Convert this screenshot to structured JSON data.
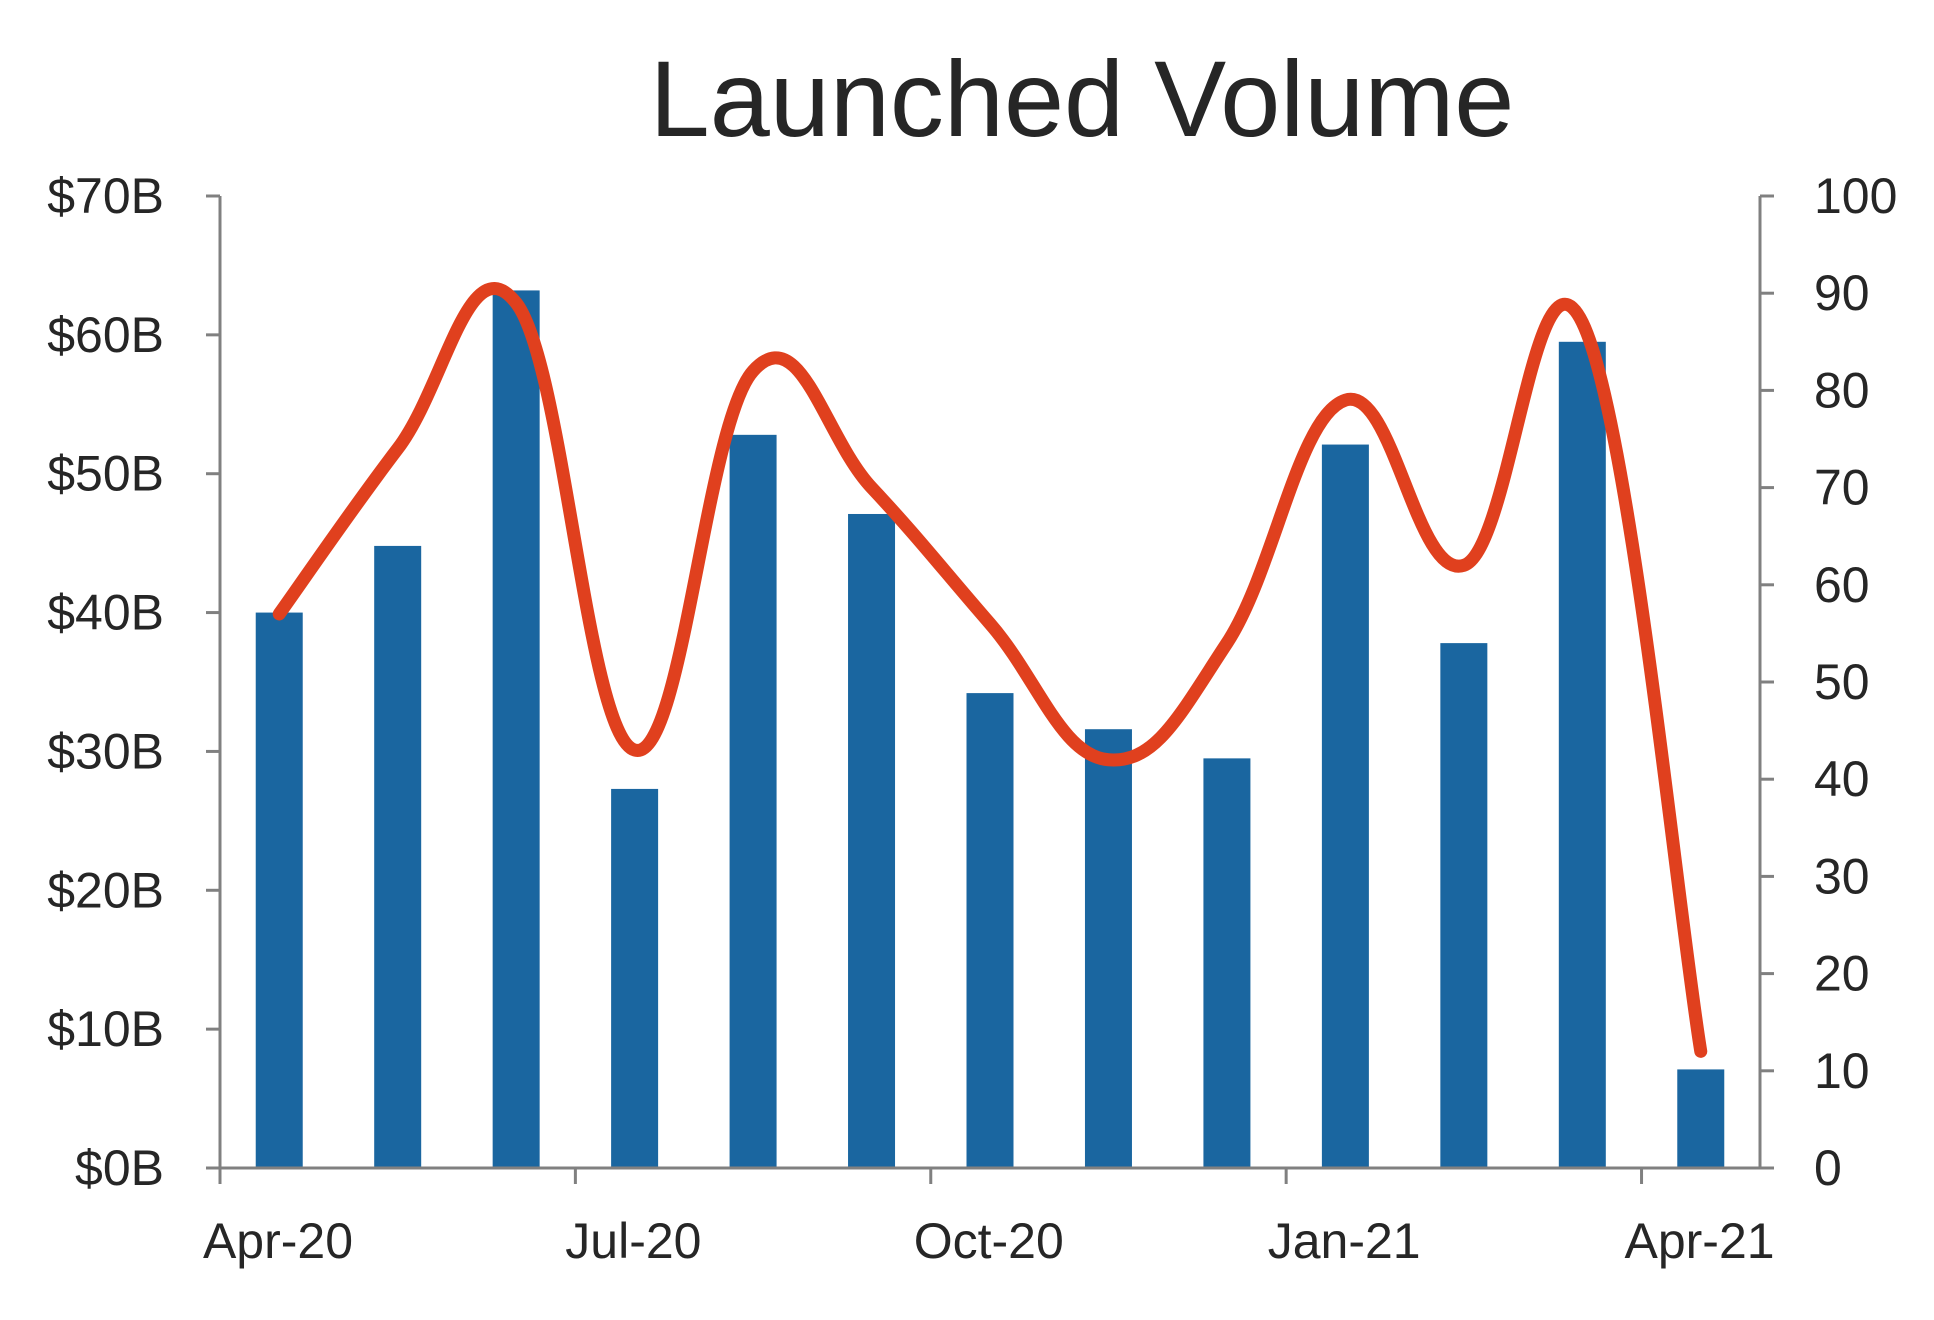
{
  "chart_data": {
    "type": "bar",
    "title": "Launched Volume",
    "x_tick_labels": [
      "Apr-20",
      "Jul-20",
      "Oct-20",
      "Jan-21",
      "Apr-21"
    ],
    "categories": [
      "Apr-20",
      "May-20",
      "Jun-20",
      "Jul-20",
      "Aug-20",
      "Sep-20",
      "Oct-20",
      "Nov-20",
      "Dec-20",
      "Jan-21",
      "Feb-21",
      "Mar-21",
      "Apr-21"
    ],
    "y_left": {
      "ylim": [
        0,
        70
      ],
      "ticks": [
        0,
        10,
        20,
        30,
        40,
        50,
        60,
        70
      ],
      "tick_labels": [
        "$0B",
        "$10B",
        "$20B",
        "$30B",
        "$40B",
        "$50B",
        "$60B",
        "$70B"
      ]
    },
    "y_right": {
      "ylim": [
        0,
        100
      ],
      "ticks": [
        0,
        10,
        20,
        30,
        40,
        50,
        60,
        70,
        80,
        90,
        100
      ],
      "tick_labels": [
        "0",
        "10",
        "20",
        "30",
        "40",
        "50",
        "60",
        "70",
        "80",
        "90",
        "100"
      ]
    },
    "series": [
      {
        "type": "bar",
        "axis": "left",
        "color": "#1a66a0",
        "values": [
          40,
          44.8,
          63.2,
          27.3,
          52.8,
          47.1,
          34.2,
          31.6,
          29.5,
          52.1,
          37.8,
          59.5,
          7.1
        ]
      },
      {
        "type": "line",
        "axis": "right",
        "smooth": true,
        "color": "#e0401e",
        "values": [
          57,
          74,
          89,
          43,
          82,
          70,
          56,
          42,
          54,
          79,
          62,
          87,
          12
        ]
      }
    ],
    "grid": false,
    "legend": "none"
  }
}
